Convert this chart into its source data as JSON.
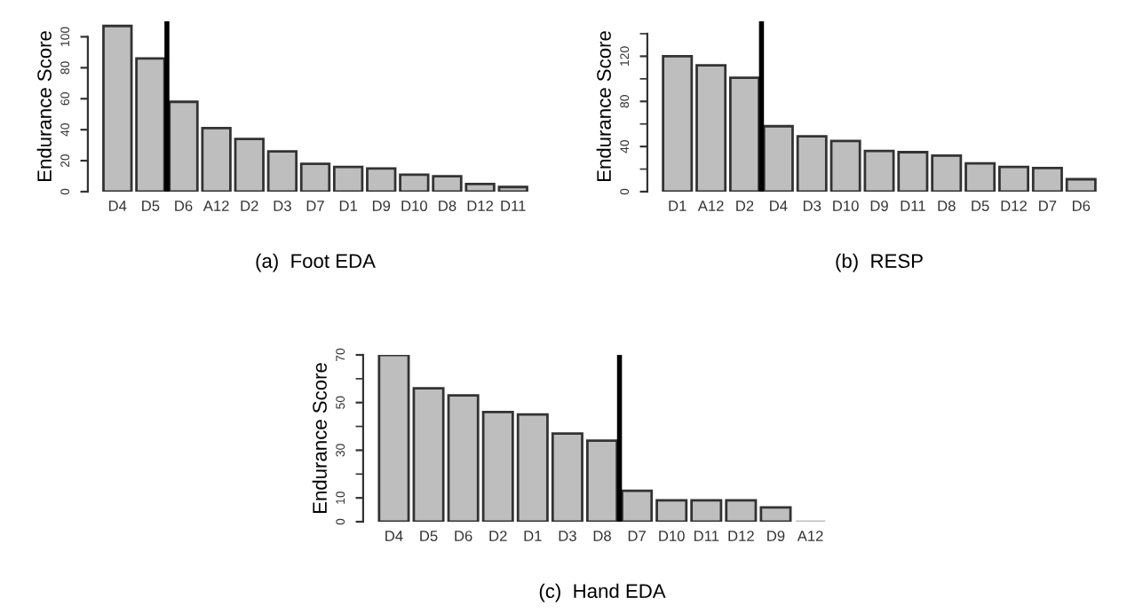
{
  "chart_data": [
    {
      "type": "bar",
      "xlabel": "(a)  Foot EDA",
      "ylabel": "Endurance Score",
      "categories": [
        "D4",
        "D5",
        "D6",
        "A12",
        "D2",
        "D3",
        "D7",
        "D1",
        "D9",
        "D10",
        "D8",
        "D12",
        "D11"
      ],
      "values": [
        107,
        86,
        58,
        41,
        34,
        26,
        18,
        16,
        15,
        11,
        10,
        5,
        3
      ],
      "color": "#bebebe",
      "ylim": [
        0,
        110
      ],
      "yticks": [
        0,
        20,
        40,
        60,
        80,
        100
      ]
    },
    {
      "type": "bar",
      "xlabel": "(b)  RESP",
      "ylabel": "Endurance Score",
      "categories": [
        "D1",
        "A12",
        "D2",
        "D4",
        "D3",
        "D10",
        "D9",
        "D11",
        "D8",
        "D5",
        "D12",
        "D7",
        "D6"
      ],
      "values": [
        120,
        112,
        101,
        58,
        49,
        45,
        36,
        35,
        32,
        25,
        22,
        21,
        11
      ],
      "color": "#bebebe",
      "ylim": [
        0,
        151
      ],
      "yticks": [
        0,
        {
          "value": 20,
          "label": null
        },
        40,
        {
          "value": 60,
          "label": null
        },
        80,
        {
          "value": 100,
          "label": null
        },
        120,
        {
          "value": 140,
          "label": null
        }
      ]
    },
    {
      "type": "bar",
      "xlabel": "(c)  Hand EDA",
      "ylabel": "Endurance Score",
      "categories": [
        "D4",
        "D5",
        "D6",
        "D2",
        "D1",
        "D3",
        "D8",
        "D7",
        "D10",
        "D11",
        "D12",
        "D9",
        "A12"
      ],
      "values": [
        70,
        56,
        53,
        46,
        45,
        37,
        34,
        13,
        9,
        9,
        9,
        6,
        0
      ],
      "color": "#bebebe",
      "ylim": [
        0,
        70
      ],
      "yticks": [
        0,
        10,
        {
          "value": 20,
          "label": null
        },
        30,
        {
          "value": 40,
          "label": null
        },
        50,
        {
          "value": 60,
          "label": null
        },
        70
      ]
    }
  ]
}
